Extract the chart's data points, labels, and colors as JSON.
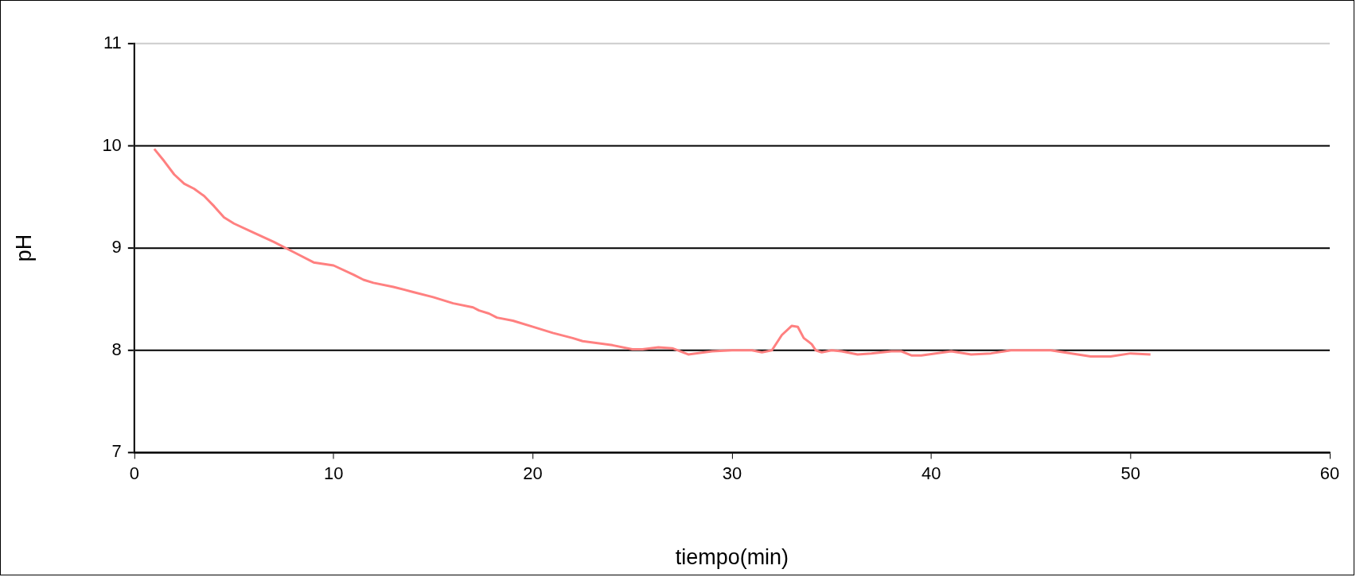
{
  "chart_data": {
    "type": "line",
    "xlabel": "tiempo(min)",
    "ylabel": "pH",
    "xlim": [
      0,
      60
    ],
    "xticks": [
      0,
      10,
      20,
      30,
      40,
      50,
      60
    ],
    "ylim": [
      7,
      11
    ],
    "yticks": [
      7,
      8,
      9,
      10,
      11
    ],
    "grid": "y",
    "legend": false,
    "marker": "none",
    "line_style": "solid",
    "series": [
      {
        "color": "#ff8080",
        "x": [
          1,
          1.5,
          2,
          2.5,
          3,
          3.5,
          4,
          4.5,
          5,
          6,
          7,
          8,
          9,
          10,
          11,
          11.5,
          12,
          13,
          14,
          15,
          16,
          17,
          17.3,
          17.8,
          18.2,
          19,
          20,
          21,
          22,
          22.5,
          24,
          25,
          25.5,
          26.3,
          27,
          27.8,
          29,
          30,
          31,
          31.5,
          32,
          32.5,
          33,
          33.3,
          33.6,
          34,
          34.2,
          34.5,
          35,
          35.5,
          36.3,
          37,
          38,
          38.5,
          39,
          39.5,
          41,
          42,
          43,
          44,
          46,
          48,
          49,
          50,
          51
        ],
        "values": [
          9.97,
          9.85,
          9.72,
          9.63,
          9.58,
          9.51,
          9.41,
          9.3,
          9.24,
          9.15,
          9.06,
          8.96,
          8.86,
          8.83,
          8.74,
          8.69,
          8.66,
          8.62,
          8.57,
          8.52,
          8.46,
          8.42,
          8.39,
          8.36,
          8.32,
          8.29,
          8.23,
          8.17,
          8.12,
          8.09,
          8.05,
          8.01,
          8.01,
          8.03,
          8.02,
          7.96,
          7.99,
          8.0,
          8.0,
          7.98,
          8.0,
          8.15,
          8.24,
          8.23,
          8.12,
          8.06,
          8.0,
          7.98,
          8.0,
          7.99,
          7.96,
          7.97,
          7.99,
          7.99,
          7.95,
          7.95,
          7.99,
          7.96,
          7.97,
          8.0,
          8.0,
          7.94,
          7.94,
          7.97,
          7.96
        ]
      }
    ]
  }
}
